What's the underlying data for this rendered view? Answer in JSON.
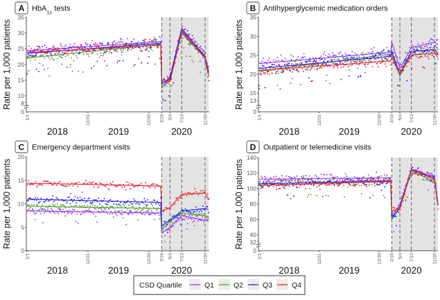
{
  "legend": {
    "title": "CSD Quartile",
    "entries": [
      {
        "label": "Q1",
        "color": "#9b30ff"
      },
      {
        "label": "Q2",
        "color": "#4a9e2a"
      },
      {
        "label": "Q3",
        "color": "#1f1fff"
      },
      {
        "label": "Q4",
        "color": "#e8232a"
      }
    ]
  },
  "shared": {
    "ylabel": "Rate per 1,000 patients",
    "years": [
      "2018",
      "2019",
      "2020"
    ],
    "date_ticks": [
      {
        "label": "1/1",
        "date": "2018-01-01"
      },
      {
        "label": "12/31",
        "date": "2018-12-31"
      },
      {
        "label": "12/30",
        "date": "2019-12-30"
      },
      {
        "label": "3/16",
        "date": "2020-03-16"
      },
      {
        "label": "5/4",
        "date": "2020-05-04"
      },
      {
        "label": "7/13",
        "date": "2020-07-13"
      },
      {
        "label": "11/30",
        "date": "2020-11-30"
      }
    ],
    "shaded_period": [
      "2020-03-16",
      "2020-12-21"
    ],
    "dashed_lines": [
      "2020-03-16",
      "2020-05-04",
      "2020-07-13",
      "2020-11-30"
    ],
    "knot_dates": [
      "2018-01-01",
      "2020-03-09",
      "2020-03-16",
      "2020-05-04",
      "2020-07-13",
      "2020-11-30",
      "2020-12-21"
    ]
  },
  "chart_data": [
    {
      "panel": "A",
      "type": "scatter",
      "title": "HbA1c tests",
      "title_parts": [
        "HbA",
        "1c",
        " tests"
      ],
      "ylabel": "Rate per 1,000 patients",
      "yticks": [
        8,
        10,
        15,
        20,
        25,
        30,
        35
      ],
      "ybreak_label": "0",
      "ylim": [
        8,
        35
      ],
      "noise": 2.2,
      "series": [
        {
          "name": "Q1",
          "trend": [
            24.3,
            27.3,
            12.5,
            16.0,
            31.0,
            22.2,
            17.5
          ]
        },
        {
          "name": "Q2",
          "trend": [
            22.0,
            26.5,
            12.5,
            15.0,
            30.0,
            22.0,
            16.5
          ]
        },
        {
          "name": "Q3",
          "trend": [
            23.5,
            26.8,
            14.0,
            15.5,
            31.5,
            22.5,
            17.5
          ]
        },
        {
          "name": "Q4",
          "trend": [
            23.8,
            26.2,
            15.2,
            14.5,
            30.5,
            22.0,
            16.0
          ]
        }
      ]
    },
    {
      "panel": "B",
      "type": "scatter",
      "title": "Antihyperglycemic medication orders",
      "title_parts": [
        "Antihyperglycemic medication orders"
      ],
      "ylabel": "Rate per 1,000 patients",
      "yticks": [
        13,
        15,
        20,
        25,
        30,
        35
      ],
      "ybreak_label": "0",
      "ylim": [
        13,
        35
      ],
      "noise": 1.8,
      "series": [
        {
          "name": "Q1",
          "trend": [
            22.8,
            25.8,
            28.5,
            21.5,
            27.0,
            28.5,
            27.7
          ]
        },
        {
          "name": "Q2",
          "trend": [
            20.8,
            25.3,
            25.5,
            19.5,
            26.0,
            26.5,
            25.5
          ]
        },
        {
          "name": "Q3",
          "trend": [
            21.5,
            24.7,
            26.0,
            20.0,
            26.0,
            26.5,
            25.5
          ]
        },
        {
          "name": "Q4",
          "trend": [
            21.0,
            23.5,
            24.7,
            20.0,
            25.0,
            25.5,
            24.5
          ]
        }
      ]
    },
    {
      "panel": "C",
      "type": "scatter",
      "title": "Emergency department visits",
      "title_parts": [
        "Emergency department visits"
      ],
      "ylabel": "Rate per 1,000 patients",
      "yticks": [
        0,
        5,
        10,
        15,
        20
      ],
      "ybreak_label": "",
      "ylim": [
        0,
        20
      ],
      "noise": 0.9,
      "series": [
        {
          "name": "Q1",
          "trend": [
            8.5,
            8.0,
            3.8,
            5.0,
            7.5,
            6.5,
            6.5
          ]
        },
        {
          "name": "Q2",
          "trend": [
            9.5,
            9.0,
            4.5,
            6.3,
            8.0,
            7.5,
            7.2
          ]
        },
        {
          "name": "Q3",
          "trend": [
            11.0,
            10.3,
            5.3,
            6.5,
            8.5,
            9.0,
            8.8
          ]
        },
        {
          "name": "Q4",
          "trend": [
            14.4,
            13.8,
            8.5,
            9.2,
            12.0,
            12.3,
            10.8
          ]
        }
      ]
    },
    {
      "panel": "D",
      "type": "scatter",
      "title": "Outpatient or telemedicine visits",
      "title_parts": [
        "Outpatient or telemedicine visits"
      ],
      "ylabel": "Rate per 1,000 patients",
      "yticks": [
        32,
        40,
        60,
        80,
        100,
        120,
        140
      ],
      "ybreak_label": "0",
      "ylim": [
        32,
        140
      ],
      "noise": 7,
      "series": [
        {
          "name": "Q1",
          "trend": [
            112,
            114,
            66,
            78,
            125,
            115,
            82
          ]
        },
        {
          "name": "Q2",
          "trend": [
            106,
            110,
            60,
            75,
            122,
            110,
            80
          ]
        },
        {
          "name": "Q3",
          "trend": [
            106,
            110,
            63,
            75,
            124,
            113,
            78
          ]
        },
        {
          "name": "Q4",
          "trend": [
            104,
            109,
            71,
            74,
            125,
            112,
            78
          ]
        }
      ]
    }
  ]
}
